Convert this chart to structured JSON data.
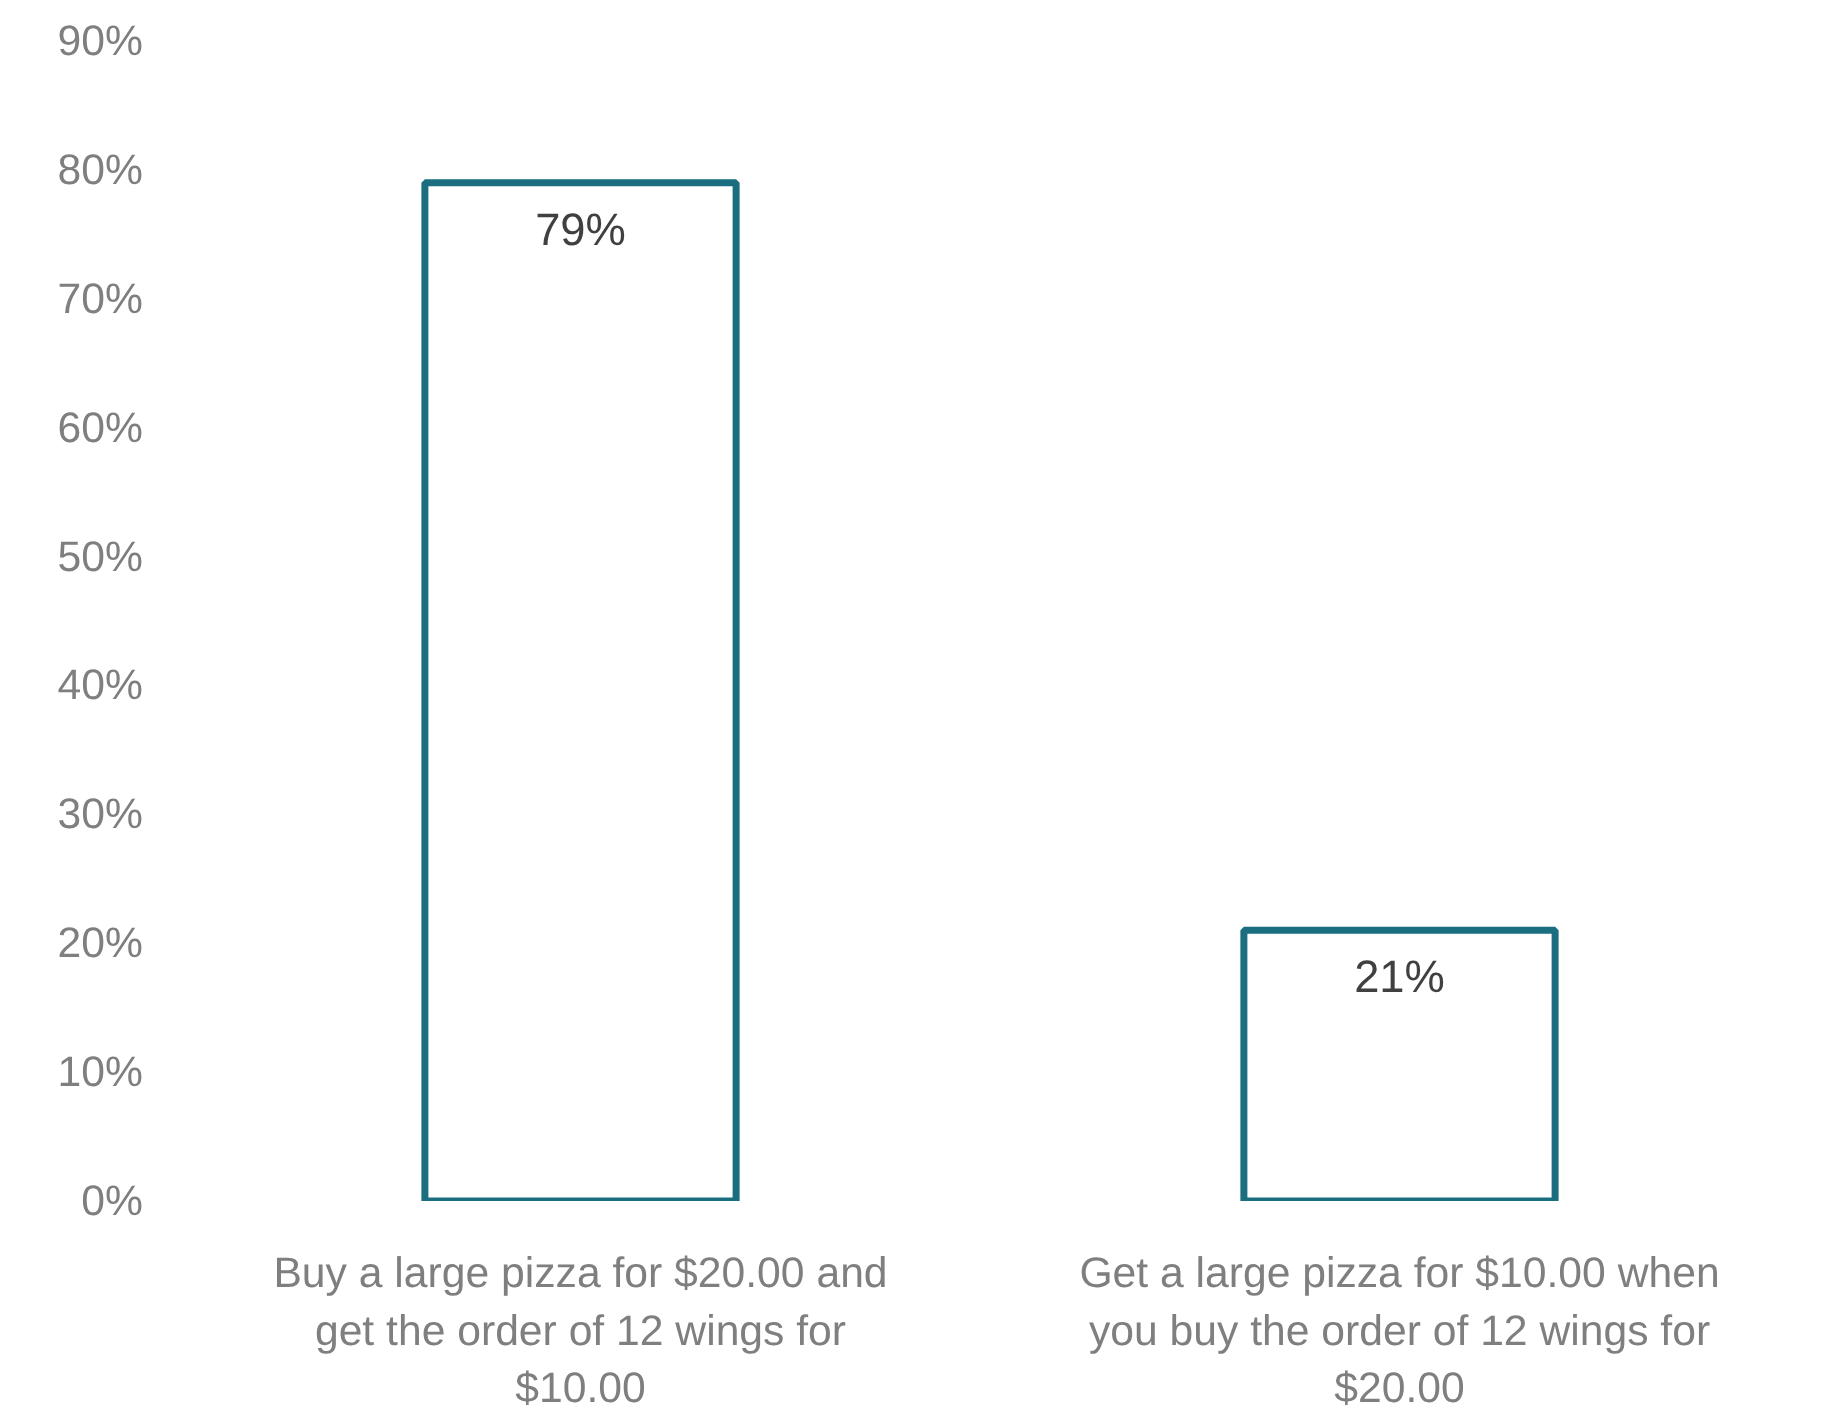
{
  "chart_data": {
    "type": "bar",
    "categories": [
      "Buy a large pizza for $20.00 and get the order of 12 wings for $10.00",
      "Get a large pizza for $10.00 when you buy the order of 12 wings for $20.00"
    ],
    "values": [
      79,
      21
    ],
    "value_labels": [
      "79%",
      "21%"
    ],
    "color": "#1a6e80",
    "ylim": [
      0,
      90
    ],
    "yticks": [
      {
        "value": 0,
        "label": "0%"
      },
      {
        "value": 10,
        "label": "10%"
      },
      {
        "value": 20,
        "label": "20%"
      },
      {
        "value": 30,
        "label": "30%"
      },
      {
        "value": 40,
        "label": "40%"
      },
      {
        "value": 50,
        "label": "50%"
      },
      {
        "value": 60,
        "label": "60%"
      },
      {
        "value": 70,
        "label": "70%"
      },
      {
        "value": 80,
        "label": "80%"
      },
      {
        "value": 90,
        "label": "90%"
      }
    ],
    "grid": false
  }
}
